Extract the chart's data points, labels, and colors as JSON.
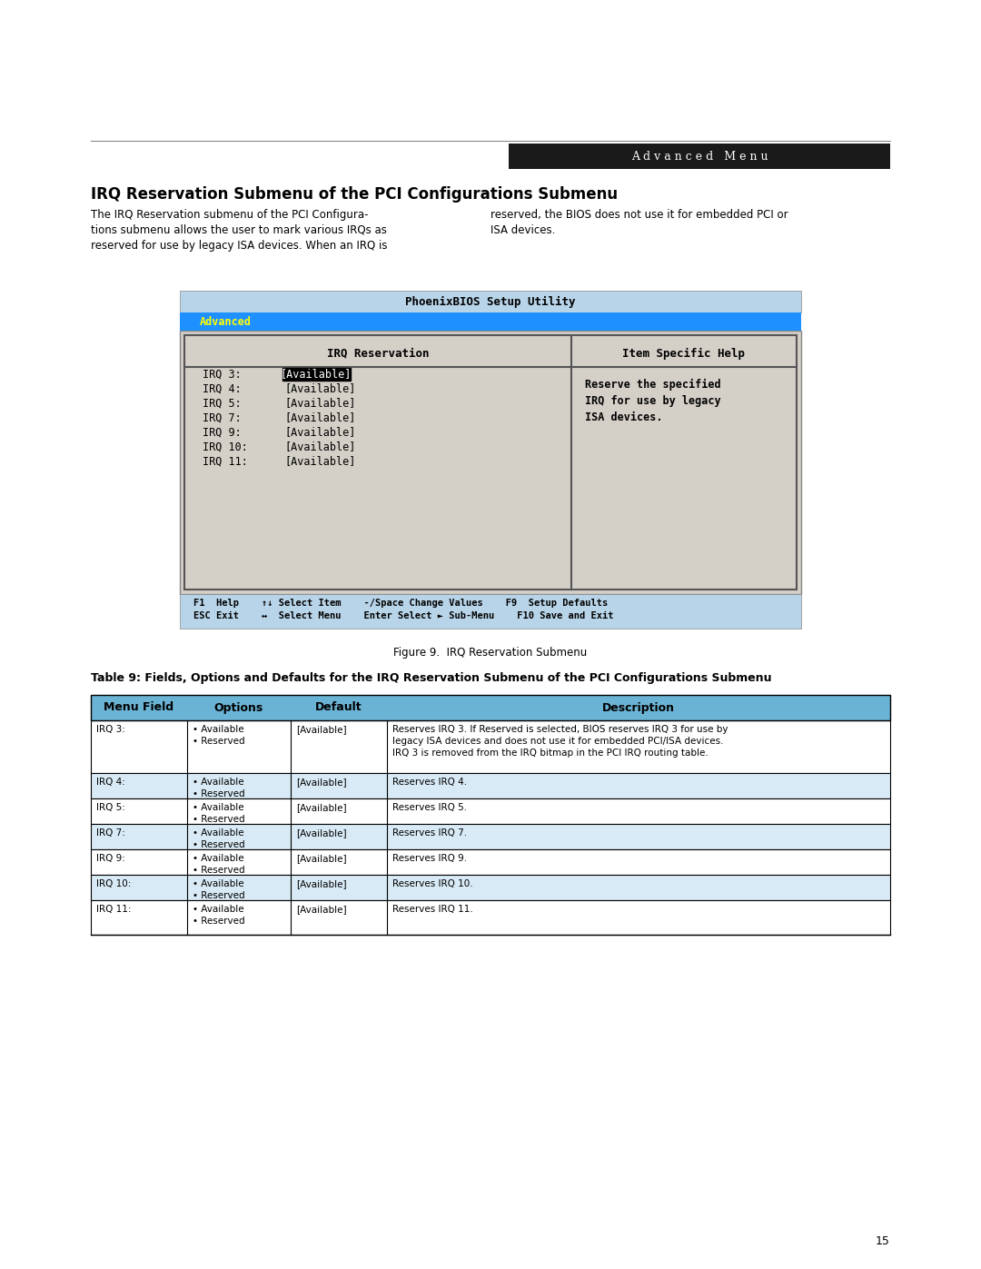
{
  "page_bg": "#ffffff",
  "header_bar_color": "#1a1a1a",
  "header_text": "A d v a n c e d   M e n u",
  "header_text_color": "#ffffff",
  "section_title": "IRQ Reservation Submenu of the PCI Configurations Submenu",
  "body_text_left": "The IRQ Reservation submenu of the PCI Configura-\ntions submenu allows the user to mark various IRQs as\nreserved for use by legacy ISA devices. When an IRQ is",
  "body_text_right": "reserved, the BIOS does not use it for embedded PCI or\nISA devices.",
  "bios_title_bar_color": "#add8e6",
  "bios_title_text": "PhoenixBIOS Setup Utility",
  "bios_nav_bar_color": "#1e90ff",
  "bios_nav_tab_color": "#1e90ff",
  "bios_nav_tab_text": "Advanced",
  "bios_nav_tab_text_color": "#ffff00",
  "bios_content_bg": "#d3d3d3",
  "bios_header_text_left": "IRQ Reservation",
  "bios_header_text_right": "Item Specific Help",
  "bios_irq_items": [
    [
      "IRQ 3:",
      "[Available]",
      true
    ],
    [
      "IRQ 4:",
      "[Available]",
      false
    ],
    [
      "IRQ 5:",
      "[Available]",
      false
    ],
    [
      "IRQ 7:",
      "[Available]",
      false
    ],
    [
      "IRQ 9:",
      "[Available]",
      false
    ],
    [
      "IRQ 10:",
      "[Available]",
      false
    ],
    [
      "IRQ 11:",
      "[Available]",
      false
    ]
  ],
  "bios_help_text": "Reserve the specified\nIRQ for use by legacy\nISA devices.",
  "bios_footer_bg": "#add8e6",
  "bios_footer_line1": "F1  Help    ↑↓ Select Item    -/Space Change Values    F9  Setup Defaults",
  "bios_footer_line2": "ESC Exit    ↔  Select Menu    Enter Select ► Sub-Menu    F10 Save and Exit",
  "figure_caption": "Figure 9.  IRQ Reservation Submenu",
  "table_title": "Table 9: Fields, Options and Defaults for the IRQ Reservation Submenu of the PCI Configurations Submenu",
  "table_headers": [
    "Menu Field",
    "Options",
    "Default",
    "Description"
  ],
  "table_rows": [
    {
      "field": "IRQ 3:",
      "options": "• Available\n• Reserved",
      "default": "[Available]",
      "description": "Reserves IRQ 3. If Reserved is selected, BIOS reserves IRQ 3 for use by\nlegacy ISA devices and does not use it for embedded PCI/ISA devices.\nIRQ 3 is removed from the IRQ bitmap in the PCI IRQ routing table."
    },
    {
      "field": "IRQ 4:",
      "options": "• Available\n• Reserved",
      "default": "[Available]",
      "description": "Reserves IRQ 4."
    },
    {
      "field": "IRQ 5:",
      "options": "• Available\n• Reserved",
      "default": "[Available]",
      "description": "Reserves IRQ 5."
    },
    {
      "field": "IRQ 7:",
      "options": "• Available\n• Reserved",
      "default": "[Available]",
      "description": "Reserves IRQ 7."
    },
    {
      "field": "IRQ 9:",
      "options": "• Available\n• Reserved",
      "default": "[Available]",
      "description": "Reserves IRQ 9."
    },
    {
      "field": "IRQ 10:",
      "options": "• Available\n• Reserved",
      "default": "[Available]",
      "description": "Reserves IRQ 10."
    },
    {
      "field": "IRQ 11:",
      "options": "• Available\n• Reserved",
      "default": "[Available]",
      "description": "Reserves IRQ 11."
    }
  ],
  "page_number": "15"
}
